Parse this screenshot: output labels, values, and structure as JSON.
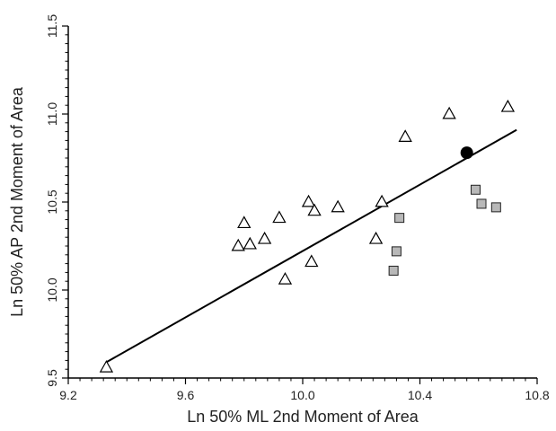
{
  "chart_data": {
    "type": "scatter",
    "title": "",
    "xlabel": "Ln 50% ML 2nd Moment of Area",
    "ylabel": "Ln 50% AP 2nd Moment of Area",
    "xlim": [
      9.2,
      10.8
    ],
    "ylim": [
      9.5,
      11.5
    ],
    "x_ticks": [
      9.2,
      9.6,
      10.0,
      10.4,
      10.8
    ],
    "x_tick_labels": [
      "9.2",
      "9.6",
      "10.0",
      "10.4",
      "10.8"
    ],
    "y_ticks": [
      9.5,
      10.0,
      10.5,
      11.0,
      11.5
    ],
    "y_tick_labels": [
      "9.5",
      "10.0",
      "10.5",
      "11.0",
      "11.5"
    ],
    "grid": false,
    "series": [
      {
        "marker": "triangle-open",
        "color": "#000000",
        "points": [
          [
            9.33,
            9.56
          ],
          [
            9.78,
            10.25
          ],
          [
            9.8,
            10.38
          ],
          [
            9.82,
            10.26
          ],
          [
            9.87,
            10.29
          ],
          [
            9.92,
            10.41
          ],
          [
            9.94,
            10.06
          ],
          [
            10.02,
            10.5
          ],
          [
            10.03,
            10.16
          ],
          [
            10.04,
            10.45
          ],
          [
            10.12,
            10.47
          ],
          [
            10.25,
            10.29
          ],
          [
            10.27,
            10.5
          ],
          [
            10.35,
            10.87
          ],
          [
            10.5,
            11.0
          ],
          [
            10.7,
            11.04
          ]
        ]
      },
      {
        "marker": "square-gray",
        "color": "#b8b8b8",
        "points": [
          [
            10.31,
            10.11
          ],
          [
            10.32,
            10.22
          ],
          [
            10.33,
            10.41
          ],
          [
            10.59,
            10.57
          ],
          [
            10.61,
            10.49
          ],
          [
            10.66,
            10.47
          ]
        ]
      },
      {
        "marker": "circle-filled",
        "color": "#000000",
        "points": [
          [
            10.56,
            10.78
          ]
        ]
      }
    ],
    "regression_line": {
      "x": [
        9.33,
        10.73
      ],
      "y": [
        9.59,
        10.91
      ]
    }
  }
}
